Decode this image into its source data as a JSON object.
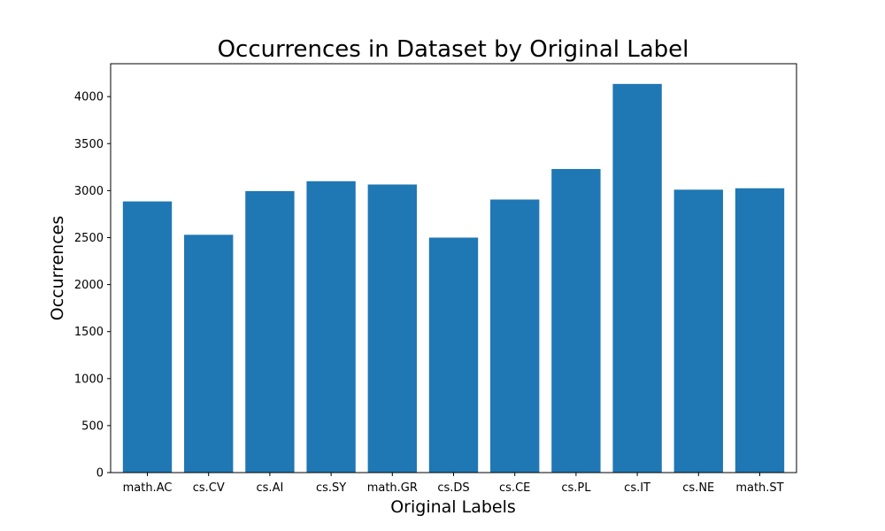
{
  "chart_data": {
    "type": "bar",
    "title": "Occurrences in Dataset by Original Label",
    "xlabel": "Original Labels",
    "ylabel": "Occurrences",
    "categories": [
      "math.AC",
      "cs.CV",
      "cs.AI",
      "cs.SY",
      "math.GR",
      "cs.DS",
      "cs.CE",
      "cs.PL",
      "cs.IT",
      "cs.NE",
      "math.ST"
    ],
    "values": [
      2885,
      2530,
      2995,
      3100,
      3065,
      2500,
      2905,
      3230,
      4135,
      3010,
      3025
    ],
    "ylim": [
      0,
      4350
    ],
    "yticks": [
      0,
      500,
      1000,
      1500,
      2000,
      2500,
      3000,
      3500,
      4000
    ],
    "bar_color": "#1f77b4",
    "grid": false,
    "legend": false
  }
}
